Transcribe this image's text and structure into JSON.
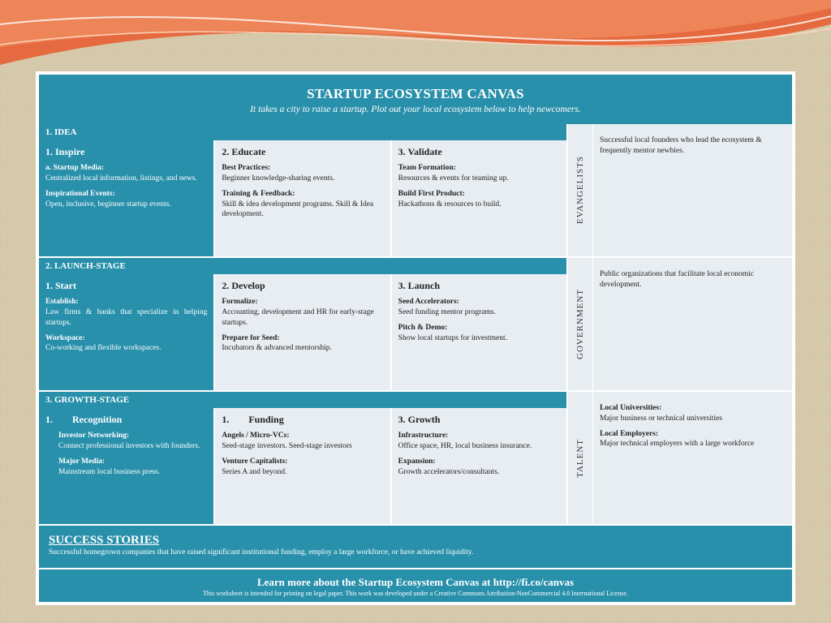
{
  "colors": {
    "teal": "#2990ab",
    "panel": "#e8edf2",
    "bg": "#d9cdb0",
    "swoosh1": "#e56a3f",
    "swoosh2": "#f0b090",
    "swoosh3": "#fff"
  },
  "header": {
    "title": "STARTUP ECOSYSTEM CANVAS",
    "subtitle": "It takes a city to raise a startup. Plot out your local ecosystem below to help newcomers."
  },
  "stages": [
    {
      "bar": "1. IDEA",
      "cols": [
        {
          "style": "dark",
          "title": "1. Inspire",
          "subs": [
            {
              "b": "a. Startup Media:",
              "t": "Centralized local information, listings, and news."
            },
            {
              "b": "Inspirational Events:",
              "t": "Open, inclusive, beginner startup events."
            }
          ]
        },
        {
          "style": "light",
          "title": "2. Educate",
          "subs": [
            {
              "b": "Best Practices:",
              "t": "Beginner knowledge-sharing events."
            },
            {
              "b": "Training & Feedback:",
              "t": "Skill & idea development programs. Skill & Idea development."
            }
          ]
        },
        {
          "style": "light",
          "title": "3. Validate",
          "subs": [
            {
              "b": "Team Formation:",
              "t": "Resources & events for teaming up."
            },
            {
              "b": "Build First Product:",
              "t": "Hackathons & resources to build."
            }
          ]
        }
      ]
    },
    {
      "bar": "2. LAUNCH-STAGE",
      "cols": [
        {
          "style": "dark",
          "title": "1. Start",
          "subs": [
            {
              "b": "Establish:",
              "t": "Law firms & banks that specialize in helping startups."
            },
            {
              "b": "Workspace:",
              "t": "Co-working and flexible workspaces."
            }
          ]
        },
        {
          "style": "light",
          "title": "2. Develop",
          "subs": [
            {
              "b": "Formalize:",
              "t": "Accounting, development and HR for early-stage startups."
            },
            {
              "b": "Prepare for Seed:",
              "t": "Incubators & advanced mentorship."
            }
          ]
        },
        {
          "style": "light",
          "title": "3. Launch",
          "subs": [
            {
              "b": "Seed Accelerators:",
              "t": "Seed funding mentor programs."
            },
            {
              "b": "Pitch & Demo:",
              "t": "Show local startups for investment."
            }
          ]
        }
      ]
    },
    {
      "bar": "3. GROWTH-STAGE",
      "cols": [
        {
          "style": "dark",
          "title": "1.  Recognition",
          "subs": [
            {
              "b": "Investor Networking:",
              "t": "Connect professional investors with founders."
            },
            {
              "b": "Major Media:",
              "t": "Mainstream local business press."
            }
          ],
          "indent": true
        },
        {
          "style": "light",
          "title": "1.  Funding",
          "subs": [
            {
              "b": "Angels / Micro-VCs:",
              "t": "Seed-stage investors. Seed-stage investors"
            },
            {
              "b": "Venture Capitalists:",
              "t": "Series A and beyond."
            }
          ]
        },
        {
          "style": "light",
          "title": "3. Growth",
          "subs": [
            {
              "b": "Infrastructure:",
              "t": "Office space, HR, local business insurance."
            },
            {
              "b": "Expansion:",
              "t": "Growth accelerators/consultants."
            }
          ]
        }
      ]
    }
  ],
  "right": [
    {
      "label": "EVANGELISTS",
      "desc": [
        {
          "b": "",
          "t": "Successful local founders who lead the ecosystem & frequently mentor newbies."
        }
      ]
    },
    {
      "label": "GOVERNMENT",
      "desc": [
        {
          "b": "",
          "t": "Public organizations that facilitate local economic development."
        }
      ]
    },
    {
      "label": "TALENT",
      "desc": [
        {
          "b": "Local Universities:",
          "t": "Major business or technical universities"
        },
        {
          "b": "Local Employers:",
          "t": "Major technical employers with a large workforce"
        }
      ]
    }
  ],
  "success": {
    "title": "SUCCESS STORIES",
    "text": "Successful homegrown companies that have raised significant institutional funding, employ a large workforce, or have achieved liquidity."
  },
  "learn": {
    "title": "Learn more about the Startup Ecosystem Canvas at http://fi.co/canvas",
    "fine": "This worksheet is intended for printing on legal paper. This work was developed under a Creative Commons Attribution-NonCommercial 4.0 International License."
  }
}
